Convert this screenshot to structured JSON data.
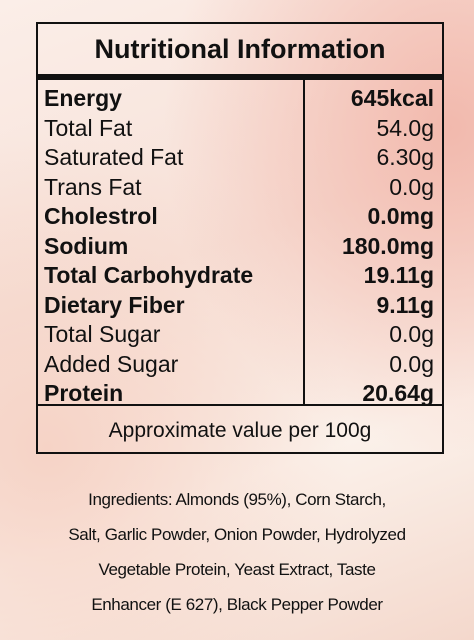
{
  "header": {
    "title": "Nutritional Information"
  },
  "table": {
    "rows": [
      {
        "label": "Energy",
        "value": "645kcal",
        "bold": true
      },
      {
        "label": "Total Fat",
        "value": "54.0g",
        "bold": false
      },
      {
        "label": "Saturated Fat",
        "value": "6.30g",
        "bold": false
      },
      {
        "label": "Trans Fat",
        "value": "0.0g",
        "bold": false
      },
      {
        "label": "Cholestrol",
        "value": "0.0mg",
        "bold": true
      },
      {
        "label": "Sodium",
        "value": "180.0mg",
        "bold": true
      },
      {
        "label": "Total Carbohydrate",
        "value": "19.11g",
        "bold": true
      },
      {
        "label": "Dietary Fiber",
        "value": "9.11g",
        "bold": true
      },
      {
        "label": "Total Sugar",
        "value": "0.0g",
        "bold": false
      },
      {
        "label": "Added Sugar",
        "value": "0.0g",
        "bold": false
      },
      {
        "label": "Protein",
        "value": "20.64g",
        "bold": true
      }
    ],
    "footnote": "Approximate value per 100g"
  },
  "ingredients": {
    "lines": [
      "Ingredients: Almonds (95%), Corn Starch,",
      "Salt, Garlic Powder, Onion Powder, Hydrolyzed",
      "Vegetable Protein, Yeast Extract, Taste",
      "Enhancer (E 627), Black Pepper Powder"
    ]
  }
}
